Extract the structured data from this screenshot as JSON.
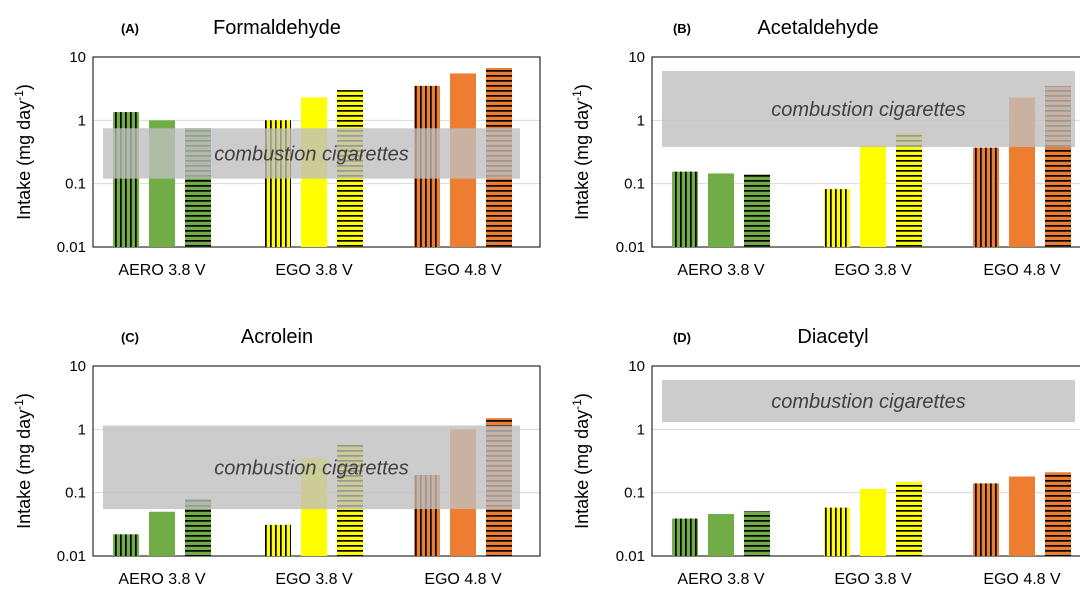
{
  "colors": {
    "aero": "#70AD47",
    "ego38": "#FFFF00",
    "ego48": "#ED7D31",
    "ego48_dark": "#C55A11",
    "stripe": "#000000",
    "band": "#BFBFBF",
    "gridline": "#D9D9D9",
    "axis_text": "#000000",
    "band_text": "#404040"
  },
  "chart_data": [
    {
      "type": "bar",
      "panel_label": "(A)",
      "title": "Formaldehyde",
      "ylabel": "Intake (mg day",
      "ylabel_sup": "-1",
      "ylabel_close": ")",
      "yscale": "log",
      "ylim": [
        0.01,
        10
      ],
      "yticks": [
        "0.01",
        "0.1",
        "1",
        "10"
      ],
      "grid": true,
      "categories": [
        "AERO 3.8 V",
        "EGO 3.8 V",
        "EGO 4.8 V"
      ],
      "series": [
        {
          "pattern": "vertical",
          "values": [
            1.35,
            1.0,
            3.5
          ]
        },
        {
          "pattern": "solid",
          "values": [
            1.0,
            2.3,
            5.5
          ]
        },
        {
          "pattern": "horizontal",
          "values": [
            0.75,
            3.0,
            6.7
          ]
        }
      ],
      "band": {
        "label": "combustion cigarettes",
        "low": 0.12,
        "high": 0.75
      }
    },
    {
      "type": "bar",
      "panel_label": "(B)",
      "title": "Acetaldehyde",
      "ylabel": "Intake (mg day",
      "ylabel_sup": "-1",
      "ylabel_close": ")",
      "yscale": "log",
      "ylim": [
        0.01,
        10
      ],
      "yticks": [
        "0.01",
        "0.1",
        "1",
        "10"
      ],
      "grid": true,
      "categories": [
        "AERO 3.8 V",
        "EGO 3.8 V",
        "EGO 4.8 V"
      ],
      "series": [
        {
          "pattern": "vertical",
          "values": [
            0.155,
            0.082,
            0.37
          ]
        },
        {
          "pattern": "solid",
          "values": [
            0.145,
            0.4,
            2.3
          ]
        },
        {
          "pattern": "horizontal",
          "values": [
            0.14,
            0.63,
            3.5
          ]
        }
      ],
      "band": {
        "label": "combustion cigarettes",
        "low": 0.38,
        "high": 6.0
      }
    },
    {
      "type": "bar",
      "panel_label": "(C)",
      "title": "Acrolein",
      "ylabel": "Intake (mg day",
      "ylabel_sup": "-1",
      "ylabel_close": ")",
      "yscale": "log",
      "ylim": [
        0.01,
        10
      ],
      "yticks": [
        "0.01",
        "0.1",
        "1",
        "10"
      ],
      "grid": true,
      "categories": [
        "AERO 3.8 V",
        "EGO 3.8 V",
        "EGO 4.8 V"
      ],
      "series": [
        {
          "pattern": "vertical",
          "values": [
            0.022,
            0.031,
            0.19
          ]
        },
        {
          "pattern": "solid",
          "values": [
            0.05,
            0.35,
            1.0
          ]
        },
        {
          "pattern": "horizontal",
          "values": [
            0.08,
            0.58,
            1.5
          ]
        }
      ],
      "band": {
        "label": "combustion cigarettes",
        "low": 0.055,
        "high": 1.15
      }
    },
    {
      "type": "bar",
      "panel_label": "(D)",
      "title": "Diacetyl",
      "ylabel": "Intake (mg day",
      "ylabel_sup": "-1",
      "ylabel_close": ")",
      "yscale": "log",
      "ylim": [
        0.01,
        10
      ],
      "yticks": [
        "0.01",
        "0.1",
        "1",
        "10"
      ],
      "grid": true,
      "categories": [
        "AERO 3.8 V",
        "EGO 3.8 V",
        "EGO 4.8 V"
      ],
      "series": [
        {
          "pattern": "vertical",
          "values": [
            0.039,
            0.058,
            0.14
          ]
        },
        {
          "pattern": "solid",
          "values": [
            0.046,
            0.115,
            0.18
          ]
        },
        {
          "pattern": "horizontal",
          "values": [
            0.051,
            0.148,
            0.21
          ]
        }
      ],
      "band": {
        "label": "combustion cigarettes",
        "low": 1.3,
        "high": 6.0
      }
    }
  ]
}
